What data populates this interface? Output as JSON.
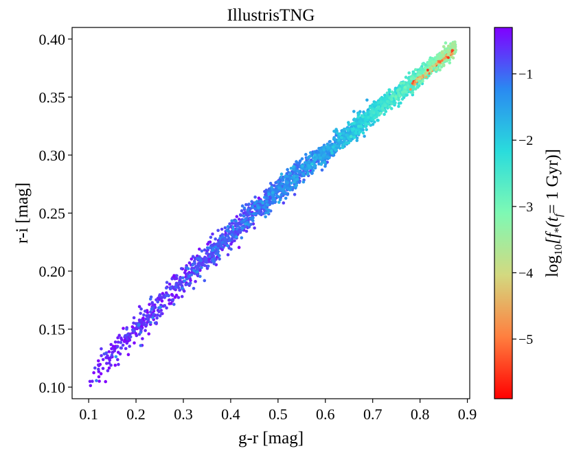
{
  "chart_data": {
    "type": "scatter",
    "title": "IllustrisTNG",
    "xlabel": "g-r [mag]",
    "ylabel": "r-i [mag]",
    "xlim": [
      0.065,
      0.905
    ],
    "ylim": [
      0.09,
      0.41
    ],
    "xticks": [
      0.1,
      0.2,
      0.3,
      0.4,
      0.5,
      0.6,
      0.7,
      0.8,
      0.9
    ],
    "xtick_labels": [
      "0.1",
      "0.2",
      "0.3",
      "0.4",
      "0.5",
      "0.6",
      "0.7",
      "0.8",
      "0.9"
    ],
    "yticks": [
      0.1,
      0.15,
      0.2,
      0.25,
      0.3,
      0.35,
      0.4
    ],
    "ytick_labels": [
      "0.10",
      "0.15",
      "0.20",
      "0.25",
      "0.30",
      "0.35",
      "0.40"
    ],
    "grid": false,
    "colorbar": {
      "label_main": "log",
      "label_sub": "10",
      "label_rest": "[f",
      "label_star": "*",
      "label_inner": "(t",
      "label_f": "f",
      "label_end": "= 1 Gyr)]",
      "range": [
        -5.9,
        -0.3
      ],
      "ticks": [
        -1,
        -2,
        -3,
        -4,
        -5
      ],
      "tick_labels": [
        "−1",
        "−2",
        "−3",
        "−4",
        "−5"
      ],
      "colormap": "rainbow",
      "colors": [
        "#ff0000",
        "#ff7f3f",
        "#d3d980",
        "#7ef9b4",
        "#2adcdc",
        "#2a8af1",
        "#8000ff"
      ]
    },
    "trend": {
      "description_points": [
        {
          "x": 0.1,
          "y": 0.107
        },
        {
          "x": 0.2,
          "y": 0.15
        },
        {
          "x": 0.3,
          "y": 0.192
        },
        {
          "x": 0.4,
          "y": 0.232
        },
        {
          "x": 0.5,
          "y": 0.27
        },
        {
          "x": 0.6,
          "y": 0.302
        },
        {
          "x": 0.7,
          "y": 0.336
        },
        {
          "x": 0.8,
          "y": 0.368
        },
        {
          "x": 0.876,
          "y": 0.393
        }
      ],
      "color_points": [
        {
          "x": 0.1,
          "c": -0.5
        },
        {
          "x": 0.3,
          "c": -0.6
        },
        {
          "x": 0.45,
          "c": -0.9
        },
        {
          "x": 0.6,
          "c": -1.3
        },
        {
          "x": 0.7,
          "c": -2.0
        },
        {
          "x": 0.8,
          "c": -2.6
        },
        {
          "x": 0.87,
          "c": -3.2
        }
      ]
    }
  }
}
